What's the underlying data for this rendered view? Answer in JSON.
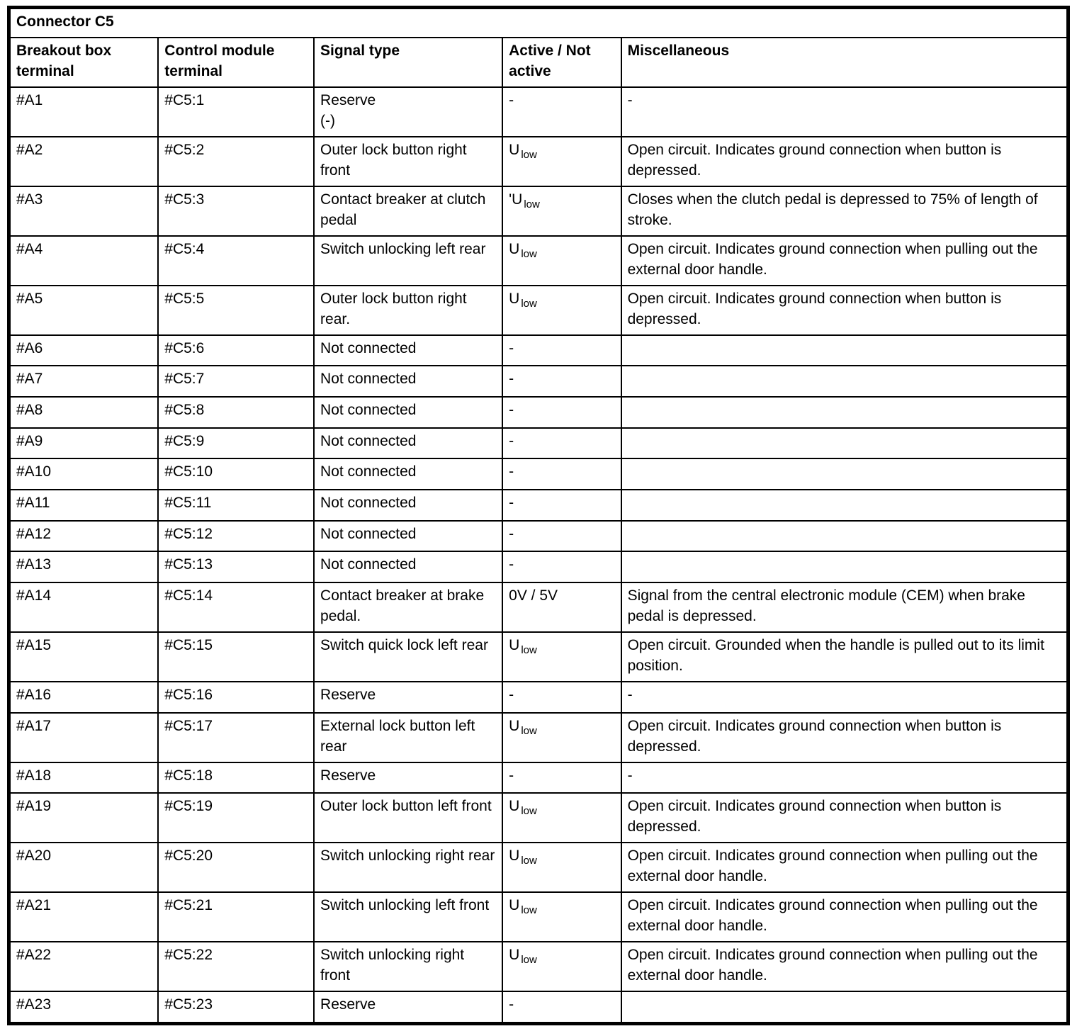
{
  "table": {
    "title": "Connector C5",
    "headers": [
      "Breakout box terminal",
      "Control module terminal",
      "Signal type",
      "Active / Not active",
      "Miscellaneous"
    ],
    "rows": [
      {
        "terminal": "#A1",
        "module": "#C5:1",
        "signal": "Reserve\n(-)",
        "active": "-",
        "active_sub": "",
        "misc": "-"
      },
      {
        "terminal": "#A2",
        "module": "#C5:2",
        "signal": "Outer lock button right front",
        "active": "U",
        "active_sub": "low",
        "misc": "Open circuit. Indicates ground connection when button is depressed."
      },
      {
        "terminal": "#A3",
        "module": "#C5:3",
        "signal": "Contact breaker at clutch pedal",
        "active": "'U",
        "active_sub": "low",
        "misc": "Closes when the clutch pedal is depressed to 75% of length of stroke."
      },
      {
        "terminal": "#A4",
        "module": "#C5:4",
        "signal": "Switch unlocking left rear",
        "active": "U",
        "active_sub": "low",
        "misc": "Open circuit. Indicates ground connection when pulling out the external door handle."
      },
      {
        "terminal": "#A5",
        "module": "#C5:5",
        "signal": "Outer lock button right rear.",
        "active": "U",
        "active_sub": "low",
        "misc": "Open circuit. Indicates ground connection when button is depressed."
      },
      {
        "terminal": "#A6",
        "module": "#C5:6",
        "signal": "Not connected",
        "active": "-",
        "active_sub": "",
        "misc": ""
      },
      {
        "terminal": "#A7",
        "module": "#C5:7",
        "signal": "Not connected",
        "active": "-",
        "active_sub": "",
        "misc": ""
      },
      {
        "terminal": "#A8",
        "module": "#C5:8",
        "signal": "Not connected",
        "active": "-",
        "active_sub": "",
        "misc": ""
      },
      {
        "terminal": "#A9",
        "module": "#C5:9",
        "signal": "Not connected",
        "active": "-",
        "active_sub": "",
        "misc": ""
      },
      {
        "terminal": "#A10",
        "module": "#C5:10",
        "signal": "Not connected",
        "active": "-",
        "active_sub": "",
        "misc": ""
      },
      {
        "terminal": "#A11",
        "module": "#C5:11",
        "signal": "Not connected",
        "active": "-",
        "active_sub": "",
        "misc": ""
      },
      {
        "terminal": "#A12",
        "module": "#C5:12",
        "signal": "Not connected",
        "active": "-",
        "active_sub": "",
        "misc": ""
      },
      {
        "terminal": "#A13",
        "module": "#C5:13",
        "signal": "Not connected",
        "active": "-",
        "active_sub": "",
        "misc": ""
      },
      {
        "terminal": "#A14",
        "module": "#C5:14",
        "signal": "Contact breaker at brake pedal.",
        "active": "0V / 5V",
        "active_sub": "",
        "misc": "Signal from the central electronic module (CEM) when brake pedal is depressed."
      },
      {
        "terminal": "#A15",
        "module": "#C5:15",
        "signal": "Switch quick lock left rear",
        "active": "U",
        "active_sub": "low",
        "misc": "Open circuit. Grounded when the handle is pulled out to its limit position."
      },
      {
        "terminal": "#A16",
        "module": "#C5:16",
        "signal": "Reserve",
        "active": "-",
        "active_sub": "",
        "misc": "-"
      },
      {
        "terminal": "#A17",
        "module": "#C5:17",
        "signal": "External lock button left rear",
        "active": "U",
        "active_sub": "low",
        "misc": "Open circuit. Indicates ground connection when button is depressed."
      },
      {
        "terminal": "#A18",
        "module": "#C5:18",
        "signal": "Reserve",
        "active": "-",
        "active_sub": "",
        "misc": "-"
      },
      {
        "terminal": "#A19",
        "module": "#C5:19",
        "signal": "Outer lock button left front",
        "active": "U",
        "active_sub": "low",
        "misc": "Open circuit. Indicates ground connection when button is depressed."
      },
      {
        "terminal": "#A20",
        "module": "#C5:20",
        "signal": "Switch unlocking right rear",
        "active": "U",
        "active_sub": "low",
        "misc": "Open circuit. Indicates ground connection when pulling out the external door handle."
      },
      {
        "terminal": "#A21",
        "module": "#C5:21",
        "signal": "Switch unlocking left front",
        "active": "U",
        "active_sub": "low",
        "misc": "Open circuit. Indicates ground connection when pulling out the external door handle."
      },
      {
        "terminal": "#A22",
        "module": "#C5:22",
        "signal": "Switch unlocking right front",
        "active": "U",
        "active_sub": "low",
        "misc": "Open circuit. Indicates ground connection when pulling out the external door handle."
      },
      {
        "terminal": "#A23",
        "module": "#C5:23",
        "signal": "Reserve",
        "active": "-",
        "active_sub": "",
        "misc": ""
      }
    ]
  }
}
